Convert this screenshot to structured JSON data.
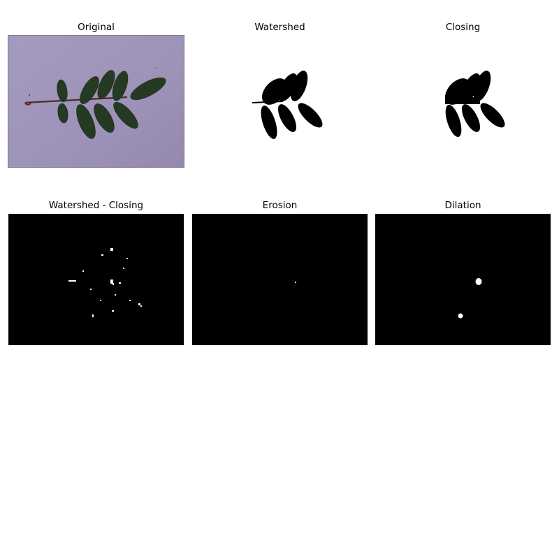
{
  "panels": [
    {
      "title": "Original"
    },
    {
      "title": "Watershed"
    },
    {
      "title": "Closing"
    },
    {
      "title": "Watershed - Closing"
    },
    {
      "title": "Erosion"
    },
    {
      "title": "Dilation"
    }
  ]
}
